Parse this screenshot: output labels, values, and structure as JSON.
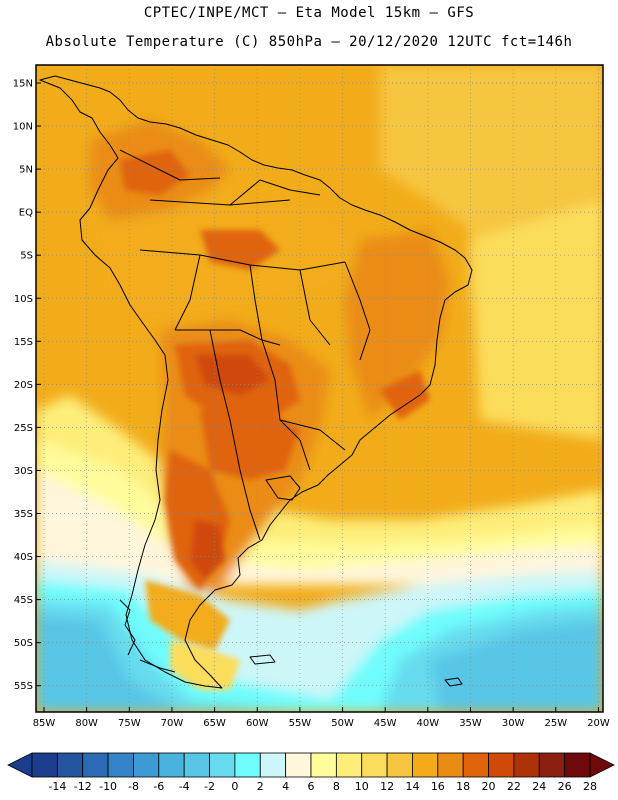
{
  "header": {
    "line1": "CPTEC/INPE/MCT —  Eta Model 15km — GFS",
    "line2": "Absolute Temperature (C) 850hPa — 20/12/2020 12UTC fct=146h"
  },
  "axes": {
    "lat_labels": [
      "15N",
      "10N",
      "5N",
      "EQ",
      "5S",
      "10S",
      "15S",
      "20S",
      "25S",
      "30S",
      "35S",
      "40S",
      "45S",
      "50S",
      "55S"
    ],
    "lon_labels": [
      "85W",
      "80W",
      "75W",
      "70W",
      "65W",
      "60W",
      "55W",
      "50W",
      "45W",
      "40W",
      "35W",
      "30W",
      "25W",
      "20W"
    ]
  },
  "colorbar": {
    "labels": [
      "-14",
      "-12",
      "-10",
      "-8",
      "-6",
      "-4",
      "-2",
      "0",
      "2",
      "4",
      "6",
      "8",
      "10",
      "12",
      "14",
      "16",
      "18",
      "20",
      "22",
      "24",
      "26",
      "28"
    ],
    "colors": [
      "#1c3c8c",
      "#2453a0",
      "#2b6ab4",
      "#3383c6",
      "#3c9bd3",
      "#49b2dd",
      "#58c6e6",
      "#66dbee",
      "#6ffcfc",
      "#cdf6f8",
      "#fff6dc",
      "#fffc9c",
      "#fdee7a",
      "#fbdd5c",
      "#f6c640",
      "#f2ac1a",
      "#ea8c14",
      "#e0640a",
      "#cf4a08",
      "#ad3208",
      "#8c2010",
      "#6e0a0a"
    ]
  }
}
